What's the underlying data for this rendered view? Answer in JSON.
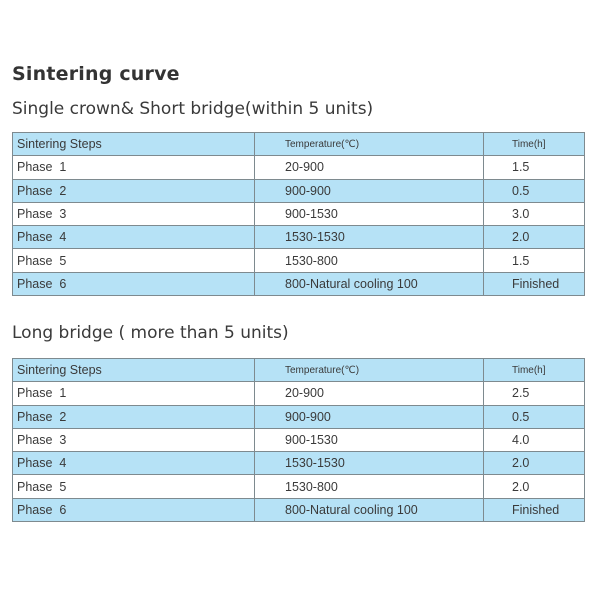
{
  "title": "Sintering curve",
  "colors": {
    "row_highlight": "#b6e2f6",
    "border": "#7e8a8f"
  },
  "tables": [
    {
      "caption": "Single crown& Short bridge(within 5 units)",
      "headers": [
        "Sintering Steps",
        "Temperature(℃)",
        "Time(h]"
      ],
      "rows": [
        [
          "Phase  1",
          "20-900",
          "1.5"
        ],
        [
          "Phase  2",
          "900-900",
          "0.5"
        ],
        [
          "Phase  3",
          "900-1530",
          "3.0"
        ],
        [
          "Phase  4",
          "1530-1530",
          "2.0"
        ],
        [
          "Phase  5",
          "1530-800",
          "1.5"
        ],
        [
          "Phase  6",
          "800-Natural cooling 100",
          "Finished"
        ]
      ],
      "highlighted_rows": [
        1,
        3,
        5
      ]
    },
    {
      "caption": "Long bridge ( more than 5 units)",
      "headers": [
        "Sintering Steps",
        "Temperature(℃)",
        "Time(h]"
      ],
      "rows": [
        [
          "Phase  1",
          "20-900",
          "2.5"
        ],
        [
          "Phase  2",
          "900-900",
          "0.5"
        ],
        [
          "Phase  3",
          "900-1530",
          "4.0"
        ],
        [
          "Phase  4",
          "1530-1530",
          "2.0"
        ],
        [
          "Phase  5",
          "1530-800",
          "2.0"
        ],
        [
          "Phase  6",
          "800-Natural cooling 100",
          "Finished"
        ]
      ],
      "highlighted_rows": [
        1,
        3,
        5
      ]
    }
  ]
}
